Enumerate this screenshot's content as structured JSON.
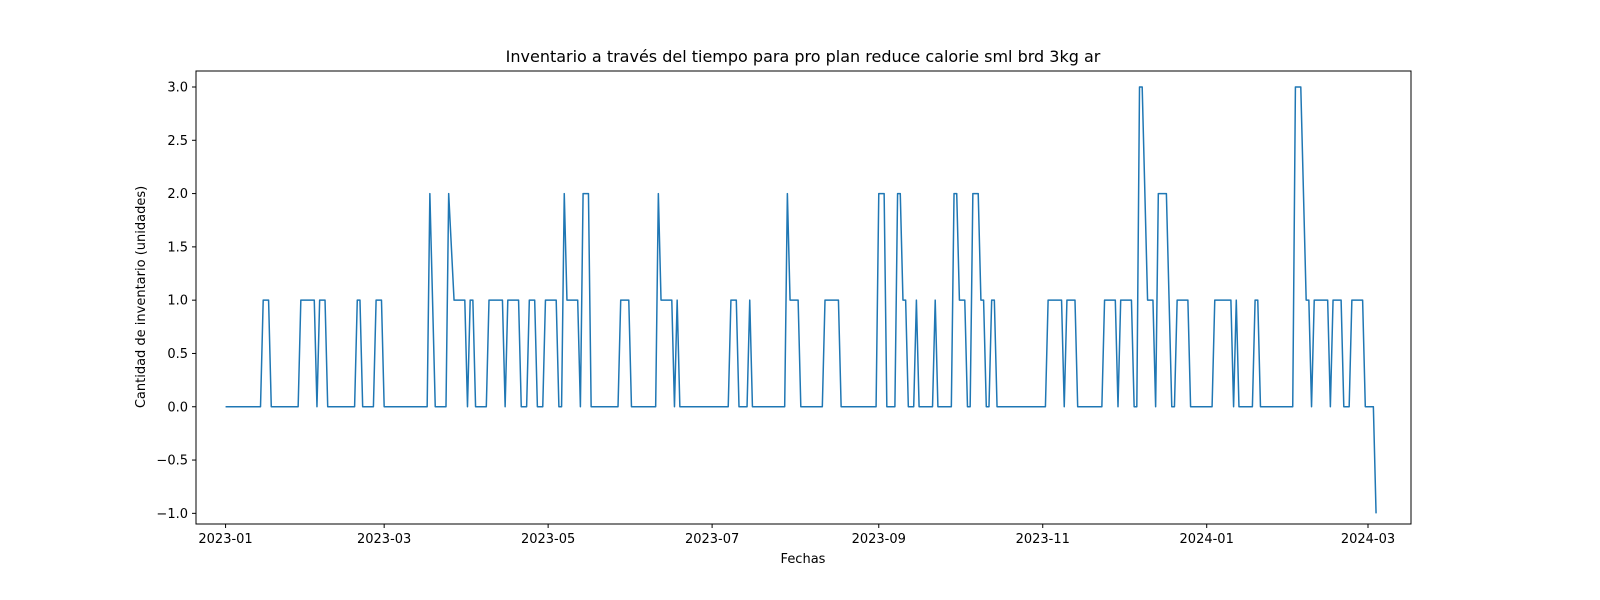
{
  "chart_data": {
    "type": "line",
    "title": "Inventario a través del tiempo para pro plan reduce calorie sml brd 3kg ar",
    "xlabel": "Fechas",
    "ylabel": "Cantidad de inventario (unidades)",
    "xlim": [
      "2022-12-21",
      "2024-03-17"
    ],
    "ylim": [
      -1.1,
      3.15
    ],
    "x_ticks": [
      "2023-01",
      "2023-03",
      "2023-05",
      "2023-07",
      "2023-09",
      "2023-11",
      "2024-01",
      "2024-03"
    ],
    "y_ticks": [
      -1.0,
      -0.5,
      0.0,
      0.5,
      1.0,
      1.5,
      2.0,
      2.5,
      3.0
    ],
    "y_tick_labels": [
      "−1.0",
      "−0.5",
      "0.0",
      "0.5",
      "1.0",
      "1.5",
      "2.0",
      "2.5",
      "3.0"
    ],
    "grid": false,
    "line_color": "#1f77b4",
    "series": [
      {
        "values": [
          [
            "2023-01-01",
            0
          ],
          [
            "2023-01-14",
            0
          ],
          [
            "2023-01-15",
            1
          ],
          [
            "2023-01-17",
            1
          ],
          [
            "2023-01-18",
            0
          ],
          [
            "2023-01-28",
            0
          ],
          [
            "2023-01-29",
            1
          ],
          [
            "2023-02-03",
            1
          ],
          [
            "2023-02-04",
            0
          ],
          [
            "2023-02-05",
            1
          ],
          [
            "2023-02-07",
            1
          ],
          [
            "2023-02-08",
            0
          ],
          [
            "2023-02-18",
            0
          ],
          [
            "2023-02-19",
            1
          ],
          [
            "2023-02-20",
            1
          ],
          [
            "2023-02-21",
            0
          ],
          [
            "2023-02-25",
            0
          ],
          [
            "2023-02-26",
            1
          ],
          [
            "2023-02-28",
            1
          ],
          [
            "2023-03-01",
            0
          ],
          [
            "2023-03-17",
            0
          ],
          [
            "2023-03-18",
            2
          ],
          [
            "2023-03-20",
            0
          ],
          [
            "2023-03-24",
            0
          ],
          [
            "2023-03-25",
            2
          ],
          [
            "2023-03-27",
            1
          ],
          [
            "2023-03-31",
            1
          ],
          [
            "2023-04-01",
            0
          ],
          [
            "2023-04-02",
            1
          ],
          [
            "2023-04-03",
            1
          ],
          [
            "2023-04-04",
            0
          ],
          [
            "2023-04-08",
            0
          ],
          [
            "2023-04-09",
            1
          ],
          [
            "2023-04-14",
            1
          ],
          [
            "2023-04-15",
            0
          ],
          [
            "2023-04-16",
            1
          ],
          [
            "2023-04-20",
            1
          ],
          [
            "2023-04-21",
            0
          ],
          [
            "2023-04-23",
            0
          ],
          [
            "2023-04-24",
            1
          ],
          [
            "2023-04-26",
            1
          ],
          [
            "2023-04-27",
            0
          ],
          [
            "2023-04-29",
            0
          ],
          [
            "2023-04-30",
            1
          ],
          [
            "2023-05-04",
            1
          ],
          [
            "2023-05-05",
            0
          ],
          [
            "2023-05-06",
            0
          ],
          [
            "2023-05-07",
            2
          ],
          [
            "2023-05-08",
            1
          ],
          [
            "2023-05-12",
            1
          ],
          [
            "2023-05-13",
            0
          ],
          [
            "2023-05-14",
            2
          ],
          [
            "2023-05-16",
            2
          ],
          [
            "2023-05-17",
            0
          ],
          [
            "2023-05-27",
            0
          ],
          [
            "2023-05-28",
            1
          ],
          [
            "2023-05-31",
            1
          ],
          [
            "2023-06-01",
            0
          ],
          [
            "2023-06-10",
            0
          ],
          [
            "2023-06-11",
            2
          ],
          [
            "2023-06-12",
            1
          ],
          [
            "2023-06-16",
            1
          ],
          [
            "2023-06-17",
            0
          ],
          [
            "2023-06-18",
            1
          ],
          [
            "2023-06-19",
            0
          ],
          [
            "2023-07-07",
            0
          ],
          [
            "2023-07-08",
            1
          ],
          [
            "2023-07-10",
            1
          ],
          [
            "2023-07-11",
            0
          ],
          [
            "2023-07-14",
            0
          ],
          [
            "2023-07-15",
            1
          ],
          [
            "2023-07-16",
            0
          ],
          [
            "2023-07-28",
            0
          ],
          [
            "2023-07-29",
            2
          ],
          [
            "2023-07-30",
            1
          ],
          [
            "2023-08-02",
            1
          ],
          [
            "2023-08-03",
            0
          ],
          [
            "2023-08-11",
            0
          ],
          [
            "2023-08-12",
            1
          ],
          [
            "2023-08-17",
            1
          ],
          [
            "2023-08-18",
            0
          ],
          [
            "2023-08-31",
            0
          ],
          [
            "2023-09-01",
            2
          ],
          [
            "2023-09-03",
            2
          ],
          [
            "2023-09-04",
            0
          ],
          [
            "2023-09-07",
            0
          ],
          [
            "2023-09-08",
            2
          ],
          [
            "2023-09-09",
            2
          ],
          [
            "2023-09-10",
            1
          ],
          [
            "2023-09-11",
            1
          ],
          [
            "2023-09-12",
            0
          ],
          [
            "2023-09-14",
            0
          ],
          [
            "2023-09-15",
            1
          ],
          [
            "2023-09-16",
            0
          ],
          [
            "2023-09-21",
            0
          ],
          [
            "2023-09-22",
            1
          ],
          [
            "2023-09-23",
            0
          ],
          [
            "2023-09-28",
            0
          ],
          [
            "2023-09-29",
            2
          ],
          [
            "2023-09-30",
            2
          ],
          [
            "2023-10-01",
            1
          ],
          [
            "2023-10-03",
            1
          ],
          [
            "2023-10-04",
            0
          ],
          [
            "2023-10-05",
            0
          ],
          [
            "2023-10-06",
            2
          ],
          [
            "2023-10-08",
            2
          ],
          [
            "2023-10-09",
            1
          ],
          [
            "2023-10-10",
            1
          ],
          [
            "2023-10-11",
            0
          ],
          [
            "2023-10-12",
            0
          ],
          [
            "2023-10-13",
            1
          ],
          [
            "2023-10-14",
            1
          ],
          [
            "2023-10-15",
            0
          ],
          [
            "2023-11-02",
            0
          ],
          [
            "2023-11-03",
            1
          ],
          [
            "2023-11-08",
            1
          ],
          [
            "2023-11-09",
            0
          ],
          [
            "2023-11-10",
            1
          ],
          [
            "2023-11-13",
            1
          ],
          [
            "2023-11-14",
            0
          ],
          [
            "2023-11-23",
            0
          ],
          [
            "2023-11-24",
            1
          ],
          [
            "2023-11-28",
            1
          ],
          [
            "2023-11-29",
            0
          ],
          [
            "2023-11-30",
            1
          ],
          [
            "2023-12-04",
            1
          ],
          [
            "2023-12-05",
            0
          ],
          [
            "2023-12-06",
            0
          ],
          [
            "2023-12-07",
            3
          ],
          [
            "2023-12-08",
            3
          ],
          [
            "2023-12-10",
            1
          ],
          [
            "2023-12-12",
            1
          ],
          [
            "2023-12-13",
            0
          ],
          [
            "2023-12-14",
            2
          ],
          [
            "2023-12-17",
            2
          ],
          [
            "2023-12-18",
            1
          ],
          [
            "2023-12-19",
            0
          ],
          [
            "2023-12-20",
            0
          ],
          [
            "2023-12-21",
            1
          ],
          [
            "2023-12-25",
            1
          ],
          [
            "2023-12-26",
            0
          ],
          [
            "2024-01-03",
            0
          ],
          [
            "2024-01-04",
            1
          ],
          [
            "2024-01-10",
            1
          ],
          [
            "2024-01-11",
            0
          ],
          [
            "2024-01-12",
            1
          ],
          [
            "2024-01-13",
            0
          ],
          [
            "2024-01-18",
            0
          ],
          [
            "2024-01-19",
            1
          ],
          [
            "2024-01-20",
            1
          ],
          [
            "2024-01-21",
            0
          ],
          [
            "2024-02-02",
            0
          ],
          [
            "2024-02-03",
            3
          ],
          [
            "2024-02-05",
            3
          ],
          [
            "2024-02-07",
            1
          ],
          [
            "2024-02-08",
            1
          ],
          [
            "2024-02-09",
            0
          ],
          [
            "2024-02-10",
            1
          ],
          [
            "2024-02-15",
            1
          ],
          [
            "2024-02-16",
            0
          ],
          [
            "2024-02-17",
            1
          ],
          [
            "2024-02-20",
            1
          ],
          [
            "2024-02-21",
            0
          ],
          [
            "2024-02-23",
            0
          ],
          [
            "2024-02-24",
            1
          ],
          [
            "2024-02-28",
            1
          ],
          [
            "2024-02-29",
            0
          ],
          [
            "2024-03-03",
            0
          ],
          [
            "2024-03-04",
            -1
          ]
        ]
      }
    ]
  }
}
